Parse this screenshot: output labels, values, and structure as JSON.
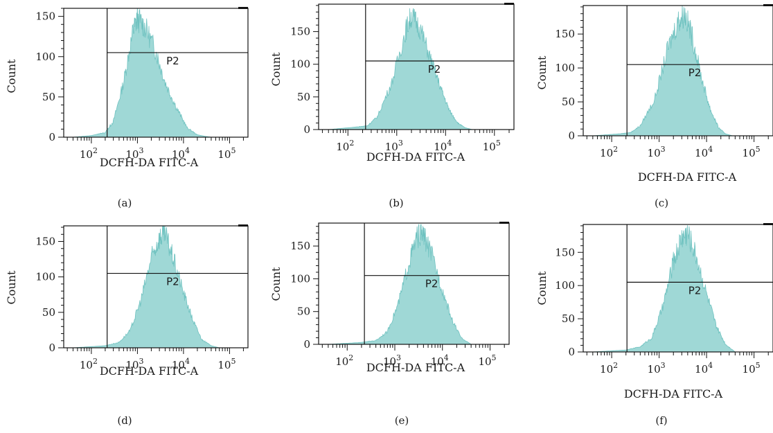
{
  "colors": {
    "histogram_fill": "#9fd8d6",
    "histogram_edge": "#6fc2c0",
    "axis": "#111111"
  },
  "chart_data": [
    {
      "type": "area",
      "panel_label": "(a)",
      "xlabel": "DCFH-DA FITC-A",
      "ylabel": "Count",
      "x_scale": "log",
      "x_ticks": [
        "10^2",
        "10^3",
        "10^4",
        "10^5"
      ],
      "y_ticks": [
        0,
        50,
        100,
        150
      ],
      "ylim": [
        0,
        160
      ],
      "gate": {
        "name": "P2",
        "x_start": 220,
        "y_level": 105
      },
      "series": [
        {
          "x": [
            40,
            100,
            200,
            300,
            500,
            800,
            1000,
            1500,
            2500,
            4000,
            7000,
            12000,
            20000,
            30000,
            40000
          ],
          "values": [
            0,
            2,
            6,
            20,
            70,
            135,
            152,
            140,
            110,
            70,
            38,
            12,
            3,
            1,
            0
          ]
        }
      ]
    },
    {
      "type": "area",
      "panel_label": "(b)",
      "xlabel": "DCFH-DA FITC-A",
      "ylabel": "Count",
      "x_scale": "log",
      "x_ticks": [
        "10^2",
        "10^3",
        "10^4",
        "10^5"
      ],
      "y_ticks": [
        0,
        50,
        100,
        150
      ],
      "ylim": [
        0,
        192
      ],
      "gate": {
        "name": "P2",
        "x_start": 230,
        "y_level": 105
      },
      "series": [
        {
          "x": [
            40,
            150,
            250,
            400,
            800,
            1500,
            2000,
            3000,
            5000,
            8000,
            12000,
            18000,
            25000,
            35000
          ],
          "values": [
            0,
            4,
            6,
            20,
            75,
            155,
            180,
            160,
            110,
            65,
            30,
            10,
            3,
            0
          ]
        }
      ]
    },
    {
      "type": "area",
      "panel_label": "(c)",
      "xlabel": "DCFH-DA FITC-A",
      "ylabel": "Count",
      "x_scale": "log",
      "x_ticks": [
        "10^2",
        "10^3",
        "10^4",
        "10^5"
      ],
      "y_ticks": [
        0,
        50,
        100,
        150
      ],
      "ylim": [
        0,
        192
      ],
      "gate": {
        "name": "P2",
        "x_start": 210,
        "y_level": 105
      },
      "series": [
        {
          "x": [
            40,
            150,
            250,
            400,
            800,
            1500,
            2500,
            3500,
            5000,
            8000,
            12000,
            18000,
            25000,
            35000
          ],
          "values": [
            0,
            3,
            5,
            15,
            55,
            130,
            175,
            185,
            150,
            85,
            40,
            12,
            3,
            0
          ]
        }
      ]
    },
    {
      "type": "area",
      "panel_label": "(d)",
      "xlabel": "DCFH-DA FITC-A",
      "ylabel": "Count",
      "x_scale": "log",
      "x_ticks": [
        "10^2",
        "10^3",
        "10^4",
        "10^5"
      ],
      "y_ticks": [
        0,
        50,
        100,
        150
      ],
      "ylim": [
        0,
        172
      ],
      "gate": {
        "name": "P2",
        "x_start": 220,
        "y_level": 105
      },
      "series": [
        {
          "x": [
            40,
            200,
            400,
            700,
            1200,
            2000,
            3000,
            4000,
            6000,
            10000,
            16000,
            25000,
            40000,
            60000
          ],
          "values": [
            0,
            3,
            8,
            25,
            70,
            130,
            160,
            165,
            130,
            80,
            40,
            12,
            3,
            0
          ]
        }
      ]
    },
    {
      "type": "area",
      "panel_label": "(e)",
      "xlabel": "DCFH-DA FITC-A",
      "ylabel": "Count",
      "x_scale": "log",
      "x_ticks": [
        "10^2",
        "10^3",
        "10^4",
        "10^5"
      ],
      "y_ticks": [
        0,
        50,
        100,
        150
      ],
      "ylim": [
        0,
        185
      ],
      "gate": {
        "name": "P2",
        "x_start": 230,
        "y_level": 105
      },
      "series": [
        {
          "x": [
            40,
            200,
            400,
            700,
            1200,
            2000,
            3000,
            4000,
            6000,
            10000,
            16000,
            25000,
            40000
          ],
          "values": [
            0,
            3,
            6,
            20,
            65,
            130,
            170,
            172,
            140,
            85,
            38,
            10,
            0
          ]
        }
      ]
    },
    {
      "type": "area",
      "panel_label": "(f)",
      "xlabel": "DCFH-DA FITC-A",
      "ylabel": "Count",
      "x_scale": "log",
      "x_ticks": [
        "10^2",
        "10^3",
        "10^4",
        "10^5"
      ],
      "y_ticks": [
        0,
        50,
        100,
        150
      ],
      "ylim": [
        0,
        192
      ],
      "gate": {
        "name": "P2",
        "x_start": 210,
        "y_level": 105
      },
      "series": [
        {
          "x": [
            40,
            200,
            400,
            700,
            1200,
            2000,
            3000,
            4000,
            6000,
            10000,
            16000,
            25000,
            40000
          ],
          "values": [
            0,
            3,
            8,
            22,
            70,
            140,
            178,
            185,
            150,
            90,
            40,
            12,
            0
          ]
        }
      ]
    }
  ]
}
